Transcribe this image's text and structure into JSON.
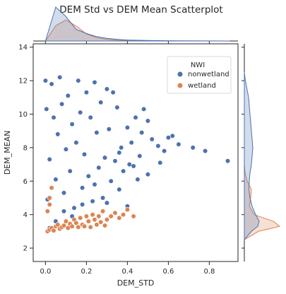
{
  "chart_data": {
    "type": "scatter",
    "title": "DEM Std vs DEM Mean Scatterplot",
    "xlabel": "DEM_STD",
    "ylabel": "DEM_MEAN",
    "xlim": [
      -0.06,
      0.94
    ],
    "ylim": [
      1.2,
      14.2
    ],
    "x_ticks": [
      "0.0",
      "0.2",
      "0.4",
      "0.6",
      "0.8"
    ],
    "y_ticks": [
      "2",
      "4",
      "6",
      "8",
      "10",
      "12",
      "14"
    ],
    "x_tick_values": [
      0.0,
      0.2,
      0.4,
      0.6,
      0.8
    ],
    "y_tick_values": [
      2,
      4,
      6,
      8,
      10,
      12,
      14
    ],
    "grid": false,
    "legend": {
      "title": "NWI",
      "placement": "top-right",
      "entries": [
        "nonwetland",
        "wetland"
      ]
    },
    "series": [
      {
        "name": "nonwetland",
        "color": "#4c72b0",
        "points": [
          [
            0.89,
            7.2
          ],
          [
            0.78,
            7.8
          ],
          [
            0.72,
            8.0
          ],
          [
            0.65,
            8.2
          ],
          [
            0.62,
            8.7
          ],
          [
            0.6,
            8.6
          ],
          [
            0.58,
            7.8
          ],
          [
            0.55,
            8.1
          ],
          [
            0.52,
            8.5
          ],
          [
            0.5,
            9.6
          ],
          [
            0.48,
            10.3
          ],
          [
            0.47,
            8.9
          ],
          [
            0.46,
            7.5
          ],
          [
            0.45,
            6.1
          ],
          [
            0.44,
            9.8
          ],
          [
            0.42,
            8.3
          ],
          [
            0.41,
            7.0
          ],
          [
            0.4,
            9.2
          ],
          [
            0.38,
            6.6
          ],
          [
            0.37,
            8.0
          ],
          [
            0.36,
            5.5
          ],
          [
            0.35,
            10.4
          ],
          [
            0.34,
            7.2
          ],
          [
            0.33,
            11.3
          ],
          [
            0.32,
            6.0
          ],
          [
            0.31,
            9.1
          ],
          [
            0.3,
            11.5
          ],
          [
            0.29,
            7.4
          ],
          [
            0.28,
            5.0
          ],
          [
            0.27,
            10.7
          ],
          [
            0.26,
            6.8
          ],
          [
            0.25,
            8.9
          ],
          [
            0.24,
            11.9
          ],
          [
            0.23,
            4.8
          ],
          [
            0.22,
            9.8
          ],
          [
            0.21,
            6.3
          ],
          [
            0.2,
            11.3
          ],
          [
            0.19,
            7.6
          ],
          [
            0.18,
            5.6
          ],
          [
            0.17,
            10.1
          ],
          [
            0.16,
            12.0
          ],
          [
            0.15,
            8.3
          ],
          [
            0.14,
            4.4
          ],
          [
            0.13,
            9.4
          ],
          [
            0.12,
            6.6
          ],
          [
            0.11,
            11.1
          ],
          [
            0.1,
            7.9
          ],
          [
            0.09,
            5.3
          ],
          [
            0.08,
            10.6
          ],
          [
            0.07,
            12.2
          ],
          [
            0.06,
            8.8
          ],
          [
            0.05,
            6.1
          ],
          [
            0.04,
            9.8
          ],
          [
            0.03,
            11.8
          ],
          [
            0.02,
            7.3
          ],
          [
            0.01,
            4.9
          ],
          [
            0.005,
            10.3
          ],
          [
            0.0,
            12.0
          ],
          [
            0.02,
            3.2
          ],
          [
            0.05,
            3.6
          ],
          [
            0.09,
            4.2
          ],
          [
            0.13,
            3.9
          ],
          [
            0.18,
            4.6
          ],
          [
            0.24,
            5.8
          ],
          [
            0.3,
            4.7
          ],
          [
            0.36,
            7.7
          ],
          [
            0.43,
            6.9
          ],
          [
            0.5,
            6.4
          ],
          [
            0.56,
            7.1
          ],
          [
            0.4,
            4.5
          ]
        ]
      },
      {
        "name": "wetland",
        "color": "#dd8452",
        "points": [
          [
            0.01,
            3.0
          ],
          [
            0.02,
            3.1
          ],
          [
            0.03,
            3.2
          ],
          [
            0.04,
            3.05
          ],
          [
            0.05,
            3.3
          ],
          [
            0.06,
            3.4
          ],
          [
            0.07,
            3.15
          ],
          [
            0.08,
            3.25
          ],
          [
            0.09,
            3.35
          ],
          [
            0.1,
            3.6
          ],
          [
            0.11,
            3.2
          ],
          [
            0.12,
            3.45
          ],
          [
            0.13,
            3.3
          ],
          [
            0.14,
            3.7
          ],
          [
            0.15,
            3.5
          ],
          [
            0.16,
            3.25
          ],
          [
            0.17,
            3.8
          ],
          [
            0.18,
            3.4
          ],
          [
            0.19,
            3.3
          ],
          [
            0.2,
            3.9
          ],
          [
            0.21,
            3.6
          ],
          [
            0.22,
            3.25
          ],
          [
            0.23,
            4.0
          ],
          [
            0.24,
            3.7
          ],
          [
            0.25,
            3.4
          ],
          [
            0.26,
            3.9
          ],
          [
            0.27,
            3.55
          ],
          [
            0.28,
            4.2
          ],
          [
            0.29,
            3.35
          ],
          [
            0.3,
            3.7
          ],
          [
            0.32,
            3.9
          ],
          [
            0.34,
            4.1
          ],
          [
            0.36,
            3.8
          ],
          [
            0.38,
            4.0
          ],
          [
            0.4,
            4.3
          ],
          [
            0.43,
            3.9
          ],
          [
            0.01,
            4.2
          ],
          [
            0.02,
            5.0
          ],
          [
            0.03,
            5.6
          ],
          [
            0.02,
            4.6
          ]
        ]
      }
    ],
    "marginal_x": {
      "x": [
        0.0,
        0.05,
        0.1,
        0.15,
        0.2,
        0.25,
        0.3,
        0.35,
        0.4,
        0.5,
        0.6,
        0.7,
        0.8,
        0.9
      ],
      "nonwetland": [
        0.0,
        1.0,
        0.72,
        0.34,
        0.22,
        0.13,
        0.08,
        0.05,
        0.03,
        0.015,
        0.008,
        0.005,
        0.002,
        0.0
      ],
      "wetland": [
        0.0,
        0.45,
        0.62,
        0.44,
        0.21,
        0.1,
        0.05,
        0.02,
        0.01,
        0.0,
        0.0,
        0.0,
        0.0,
        0.0
      ]
    },
    "marginal_y": {
      "y": [
        2.5,
        3.0,
        3.3,
        3.6,
        4.0,
        4.5,
        5.0,
        5.5,
        6.0,
        6.5,
        7.0,
        8.0,
        9.0,
        10.0,
        11.0,
        12.0,
        12.5
      ],
      "nonwetland": [
        0.0,
        0.2,
        0.38,
        0.42,
        0.32,
        0.22,
        0.16,
        0.13,
        0.14,
        0.16,
        0.2,
        0.24,
        0.2,
        0.16,
        0.12,
        0.03,
        0.0
      ],
      "wetland": [
        0.0,
        0.4,
        1.0,
        0.82,
        0.28,
        0.14,
        0.18,
        0.2,
        0.08,
        0.02,
        0.0,
        0.0,
        0.0,
        0.0,
        0.0,
        0.0,
        0.0
      ]
    }
  }
}
